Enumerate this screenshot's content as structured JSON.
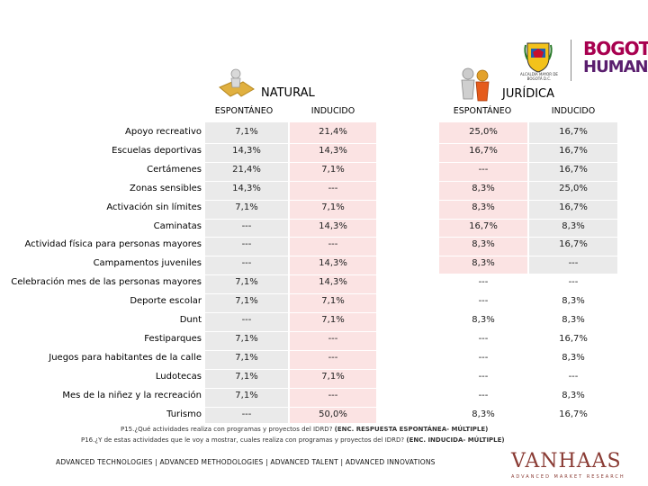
{
  "logos": {
    "seal_text": "ALCALDÍA MAYOR DE BOGOTÁ D.C.",
    "brand_top": "BOGOTÁ",
    "brand_bottom": "HUMANA"
  },
  "groups": {
    "natural": "NATURAL",
    "juridica": "JURÍDICA"
  },
  "columns": [
    "ESPONTÁNEO",
    "INDUCIDO",
    "ESPONTÁNEO",
    "INDUCIDO"
  ],
  "rows": [
    {
      "label": "Apoyo recreativo",
      "values": [
        "7,1%",
        "21,4%",
        "25,0%",
        "16,7%"
      ]
    },
    {
      "label": "Escuelas deportivas",
      "values": [
        "14,3%",
        "14,3%",
        "16,7%",
        "16,7%"
      ]
    },
    {
      "label": "Certámenes",
      "values": [
        "21,4%",
        "7,1%",
        "---",
        "16,7%"
      ]
    },
    {
      "label": "Zonas sensibles",
      "values": [
        "14,3%",
        "---",
        "8,3%",
        "25,0%"
      ]
    },
    {
      "label": "Activación sin límites",
      "values": [
        "7,1%",
        "7,1%",
        "8,3%",
        "16,7%"
      ]
    },
    {
      "label": "Caminatas",
      "values": [
        "---",
        "14,3%",
        "16,7%",
        "8,3%"
      ]
    },
    {
      "label": "Actividad física para personas mayores",
      "values": [
        "---",
        "---",
        "8,3%",
        "16,7%"
      ]
    },
    {
      "label": "Campamentos juveniles",
      "values": [
        "---",
        "14,3%",
        "8,3%",
        "---"
      ]
    },
    {
      "label": "Celebración mes de las personas mayores",
      "values": [
        "7,1%",
        "14,3%",
        "---",
        "---"
      ]
    },
    {
      "label": "Deporte escolar",
      "values": [
        "7,1%",
        "7,1%",
        "---",
        "8,3%"
      ]
    },
    {
      "label": "Dunt",
      "values": [
        "---",
        "7,1%",
        "8,3%",
        "8,3%"
      ]
    },
    {
      "label": "Festiparques",
      "values": [
        "7,1%",
        "---",
        "---",
        "16,7%"
      ]
    },
    {
      "label": "Juegos para habitantes de la calle",
      "values": [
        "7,1%",
        "---",
        "---",
        "8,3%"
      ]
    },
    {
      "label": "Ludotecas",
      "values": [
        "7,1%",
        "7,1%",
        "---",
        "---"
      ]
    },
    {
      "label": "Mes de la niñez y la recreación",
      "values": [
        "7,1%",
        "---",
        "---",
        "8,3%"
      ]
    },
    {
      "label": "Turismo",
      "values": [
        "---",
        "50,0%",
        "8,3%",
        "16,7%"
      ]
    }
  ],
  "notes": {
    "p15_prefix": "P15.¿Qué actividades realiza con programas y proyectos del IDRD? ",
    "p15_bold": "(ENC. RESPUESTA ESPONTÁNEA- MÚLTIPLE)",
    "p16_prefix": "P16.¿Y de estas actividades que le voy a mostrar, cuales realiza con programas y proyectos del IDRD? ",
    "p16_bold": "(ENC. INDUCIDA- MÚLTIPLE)"
  },
  "footer": {
    "tagline": "ADVANCED TECHNOLOGIES  |  ADVANCED METHODOLOGIES  |  ADVANCED TALENT  |  ADVANCED INNOVATIONS",
    "brand": "VANHAAS",
    "brand_sub": "ADVANCED MARKET RESEARCH"
  },
  "colors": {
    "natural_esp": "#eaeaea",
    "natural_ind": "#fbe3e3",
    "juridica_esp": "#fbe3e3",
    "juridica_ind": "#eaeaea",
    "brand_magenta": "#a8004f",
    "brand_purple": "#5a1e6e",
    "vanhaas": "#8a3b34"
  }
}
